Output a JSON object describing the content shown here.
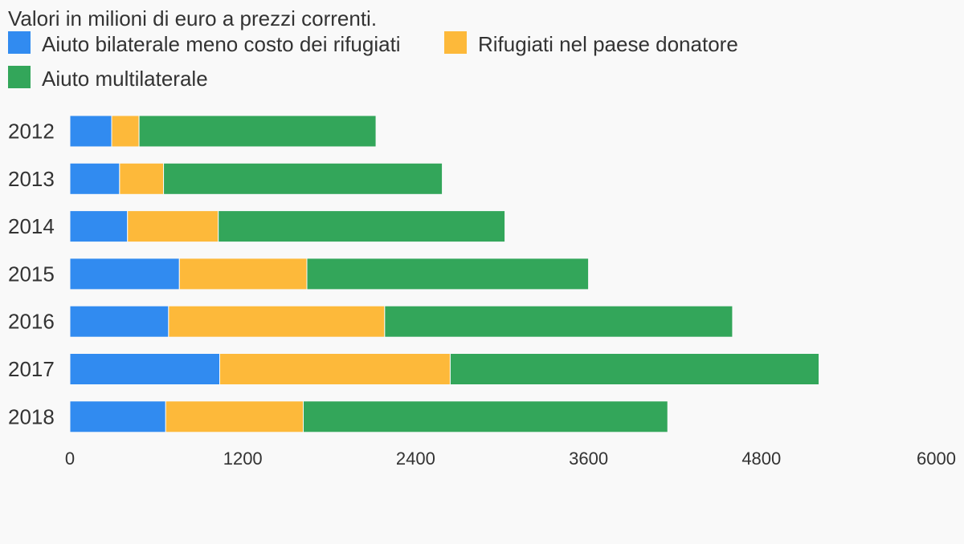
{
  "subtitle": "Valori in milioni di euro a prezzi correnti.",
  "chart_data": {
    "type": "bar",
    "orientation": "horizontal",
    "stacked": true,
    "title": "",
    "subtitle": "Valori in milioni di euro a prezzi correnti.",
    "xlabel": "",
    "ylabel": "",
    "xlim": [
      0,
      6000
    ],
    "xticks": [
      "0",
      "1200",
      "2400",
      "3600",
      "4800",
      "6000"
    ],
    "categories": [
      "2012",
      "2013",
      "2014",
      "2015",
      "2016",
      "2017",
      "2018"
    ],
    "grid": false,
    "legend_position": "top-left",
    "series": [
      {
        "name": "Aiuto bilaterale meno costo dei rifugiati",
        "color": "#318bf0",
        "values": [
          290,
          345,
          400,
          760,
          685,
          1040,
          665
        ]
      },
      {
        "name": "Rifugiati nel paese donatore",
        "color": "#fdb93a",
        "values": [
          190,
          305,
          630,
          885,
          1500,
          1600,
          955
        ]
      },
      {
        "name": "Aiuto multilaterale",
        "color": "#33a65a",
        "values": [
          1645,
          1935,
          1990,
          1955,
          2415,
          2560,
          2530
        ]
      }
    ]
  }
}
